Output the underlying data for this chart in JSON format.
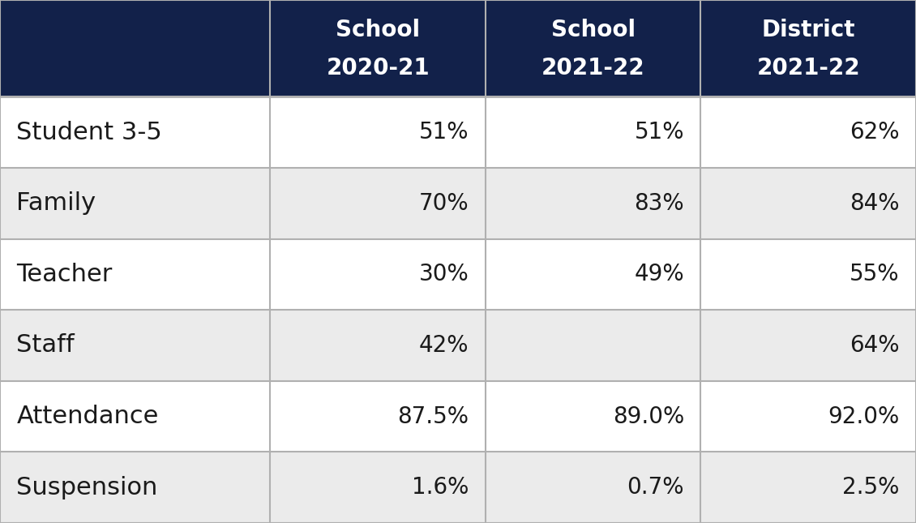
{
  "header_bg_color": "#12214a",
  "header_text_color": "#ffffff",
  "row_colors": [
    "#ffffff",
    "#ebebeb"
  ],
  "cell_text_color": "#1a1a1a",
  "grid_color": "#b0b0b0",
  "col_headers": [
    [
      "School",
      "2020-21"
    ],
    [
      "School",
      "2021-22"
    ],
    [
      "District",
      "2021-22"
    ]
  ],
  "row_labels": [
    "Student 3-5",
    "Family",
    "Teacher",
    "Staff",
    "Attendance",
    "Suspension"
  ],
  "data": [
    [
      "51%",
      "51%",
      "62%"
    ],
    [
      "70%",
      "83%",
      "84%"
    ],
    [
      "30%",
      "49%",
      "55%"
    ],
    [
      "42%",
      "",
      "64%"
    ],
    [
      "87.5%",
      "89.0%",
      "92.0%"
    ],
    [
      "1.6%",
      "0.7%",
      "2.5%"
    ]
  ],
  "header_fontsize": 20,
  "label_fontsize": 22,
  "data_fontsize": 20,
  "fig_width": 11.3,
  "fig_height": 6.45,
  "dpi": 100
}
